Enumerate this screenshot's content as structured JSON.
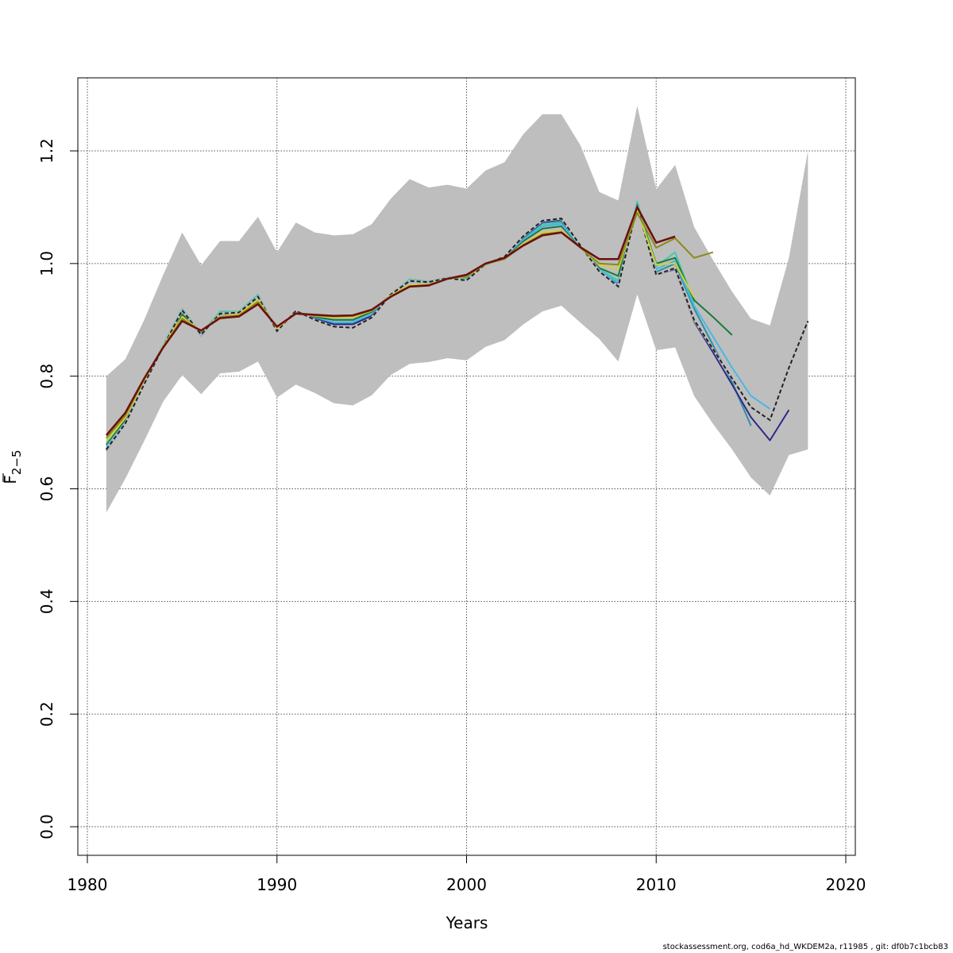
{
  "chart_data": {
    "type": "line",
    "xlabel": "Years",
    "ylabel": {
      "main": "F",
      "subscript": "2−5"
    },
    "xlim": [
      1980,
      2020
    ],
    "ylim": [
      0.0,
      1.2
    ],
    "xticks": [
      1980,
      1990,
      2000,
      2010,
      2020
    ],
    "yticks": [
      0.0,
      0.2,
      0.4,
      0.6,
      0.8,
      1.0,
      1.2
    ],
    "grid": true,
    "band": {
      "x": [
        1981,
        1982,
        1983,
        1984,
        1985,
        1986,
        1987,
        1988,
        1989,
        1990,
        1991,
        1992,
        1993,
        1994,
        1995,
        1996,
        1997,
        1998,
        1999,
        2000,
        2001,
        2002,
        2003,
        2004,
        2005,
        2006,
        2007,
        2008,
        2009,
        2010,
        2011,
        2012,
        2013,
        2014,
        2015,
        2016,
        2017,
        2018
      ],
      "upper": [
        0.8,
        0.83,
        0.9,
        0.98,
        1.055,
        0.997,
        1.04,
        1.04,
        1.083,
        1.02,
        1.073,
        1.055,
        1.05,
        1.052,
        1.07,
        1.115,
        1.15,
        1.135,
        1.14,
        1.133,
        1.165,
        1.18,
        1.23,
        1.265,
        1.265,
        1.21,
        1.127,
        1.112,
        1.28,
        1.132,
        1.175,
        1.065,
        1.006,
        0.95,
        0.902,
        0.89,
        1.01,
        1.2
      ],
      "lower": [
        0.558,
        0.618,
        0.685,
        0.755,
        0.802,
        0.768,
        0.805,
        0.808,
        0.826,
        0.762,
        0.785,
        0.77,
        0.752,
        0.748,
        0.766,
        0.802,
        0.822,
        0.825,
        0.832,
        0.828,
        0.852,
        0.864,
        0.892,
        0.915,
        0.925,
        0.895,
        0.866,
        0.826,
        0.945,
        0.846,
        0.851,
        0.765,
        0.715,
        0.67,
        0.62,
        0.588,
        0.66,
        0.67
      ],
      "color": "#bebebe"
    },
    "series": [
      {
        "color": "#4dc7a8",
        "width": 2,
        "x": [
          1981,
          1982,
          1983,
          1984,
          1985,
          1986,
          1987,
          1988,
          1989,
          1990,
          1991,
          1992,
          1993,
          1994,
          1995,
          1996,
          1997,
          1998,
          1999,
          2000,
          2001,
          2002,
          2003,
          2004,
          2005,
          2006,
          2007,
          2008,
          2009,
          2010,
          2011,
          2012
        ],
        "values": [
          0.68,
          0.72,
          0.79,
          0.855,
          0.92,
          0.875,
          0.915,
          0.915,
          0.945,
          0.88,
          0.915,
          0.905,
          0.9,
          0.9,
          0.915,
          0.945,
          0.972,
          0.968,
          0.975,
          0.975,
          0.998,
          1.012,
          1.045,
          1.068,
          1.072,
          1.03,
          0.99,
          0.97,
          1.11,
          0.995,
          1.02,
          0.93
        ]
      },
      {
        "color": "#1a7a3a",
        "width": 2,
        "x": [
          1981,
          1982,
          1983,
          1984,
          1985,
          1986,
          1987,
          1988,
          1989,
          1990,
          1991,
          1992,
          1993,
          1994,
          1995,
          1996,
          1997,
          1998,
          1999,
          2000,
          2001,
          2002,
          2003,
          2004,
          2005,
          2006,
          2007,
          2008,
          2009,
          2010,
          2011,
          2012,
          2013,
          2014
        ],
        "values": [
          0.678,
          0.722,
          0.792,
          0.852,
          0.91,
          0.878,
          0.91,
          0.912,
          0.94,
          0.882,
          0.913,
          0.905,
          0.9,
          0.9,
          0.914,
          0.944,
          0.968,
          0.966,
          0.974,
          0.976,
          0.998,
          1.011,
          1.04,
          1.062,
          1.066,
          1.03,
          0.992,
          0.978,
          1.1,
          1.0,
          1.01,
          0.935,
          0.905,
          0.873
        ]
      },
      {
        "color": "#2f8fa8",
        "width": 2,
        "x": [
          1981,
          1982,
          1983,
          1984,
          1985,
          1986,
          1987,
          1988,
          1989,
          1990,
          1991,
          1992,
          1993,
          1994,
          1995,
          1996,
          1997,
          1998,
          1999,
          2000,
          2001,
          2002,
          2003,
          2004,
          2005,
          2006,
          2007,
          2008,
          2009,
          2010,
          2011,
          2012,
          2013,
          2014,
          2015
        ],
        "values": [
          0.668,
          0.715,
          0.786,
          0.852,
          0.918,
          0.872,
          0.912,
          0.913,
          0.942,
          0.88,
          0.916,
          0.902,
          0.893,
          0.893,
          0.908,
          0.945,
          0.97,
          0.968,
          0.975,
          0.971,
          0.999,
          1.012,
          1.046,
          1.072,
          1.075,
          1.032,
          0.988,
          0.963,
          1.105,
          0.985,
          1.0,
          0.92,
          0.855,
          0.79,
          0.712
        ]
      },
      {
        "color": "#48b8e0",
        "width": 2,
        "x": [
          1981,
          1982,
          1983,
          1984,
          1985,
          1986,
          1987,
          1988,
          1989,
          1990,
          1991,
          1992,
          1993,
          1994,
          1995,
          1996,
          1997,
          1998,
          1999,
          2000,
          2001,
          2002,
          2003,
          2004,
          2005,
          2006,
          2007,
          2008,
          2009,
          2010,
          2011,
          2012,
          2013,
          2014,
          2015,
          2016
        ],
        "values": [
          0.675,
          0.718,
          0.788,
          0.853,
          0.915,
          0.876,
          0.912,
          0.914,
          0.942,
          0.881,
          0.914,
          0.903,
          0.896,
          0.896,
          0.91,
          0.945,
          0.968,
          0.966,
          0.974,
          0.972,
          0.998,
          1.012,
          1.043,
          1.066,
          1.07,
          1.031,
          0.989,
          0.966,
          1.1,
          0.99,
          1.005,
          0.925,
          0.87,
          0.815,
          0.765,
          0.742
        ]
      },
      {
        "color": "#2e2a8c",
        "width": 2,
        "x": [
          1981,
          1982,
          1983,
          1984,
          1985,
          1986,
          1987,
          1988,
          1989,
          1990,
          1991,
          1992,
          1993,
          1994,
          1995,
          1996,
          1997,
          1998,
          1999,
          2000,
          2001,
          2002,
          2003,
          2004,
          2005,
          2006,
          2007,
          2008,
          2009,
          2010,
          2011,
          2012,
          2013,
          2014,
          2015,
          2016,
          2017
        ],
        "values": [
          0.67,
          0.716,
          0.786,
          0.852,
          0.917,
          0.874,
          0.911,
          0.913,
          0.941,
          0.88,
          0.916,
          0.902,
          0.892,
          0.892,
          0.907,
          0.945,
          0.969,
          0.967,
          0.974,
          0.97,
          0.999,
          1.012,
          1.047,
          1.074,
          1.078,
          1.032,
          0.986,
          0.96,
          1.102,
          0.98,
          0.99,
          0.897,
          0.842,
          0.785,
          0.727,
          0.686,
          0.74
        ]
      },
      {
        "color": "#222222",
        "width": 2,
        "dashed": true,
        "x": [
          1981,
          1982,
          1983,
          1984,
          1985,
          1986,
          1987,
          1988,
          1989,
          1990,
          1991,
          1992,
          1993,
          1994,
          1995,
          1996,
          1997,
          1998,
          1999,
          2000,
          2001,
          2002,
          2003,
          2004,
          2005,
          2006,
          2007,
          2008,
          2009,
          2010,
          2011,
          2012,
          2013,
          2014,
          2015,
          2016,
          2017,
          2018
        ],
        "values": [
          0.67,
          0.716,
          0.786,
          0.852,
          0.917,
          0.874,
          0.911,
          0.913,
          0.941,
          0.88,
          0.916,
          0.9,
          0.888,
          0.886,
          0.904,
          0.945,
          0.969,
          0.967,
          0.974,
          0.97,
          0.999,
          1.012,
          1.049,
          1.076,
          1.08,
          1.032,
          0.986,
          0.959,
          1.102,
          0.98,
          0.992,
          0.9,
          0.848,
          0.796,
          0.745,
          0.722,
          0.815,
          0.898
        ]
      },
      {
        "color": "#d6cf3a",
        "width": 2,
        "x": [
          1981,
          1982,
          1983,
          1984,
          1985,
          1986,
          1987,
          1988,
          1989,
          1990,
          1991,
          1992,
          1993,
          1994,
          1995,
          1996,
          1997,
          1998,
          1999,
          2000,
          2001,
          2002,
          2003,
          2004,
          2005,
          2006,
          2007,
          2008,
          2009,
          2010,
          2011,
          2012
        ],
        "values": [
          0.684,
          0.726,
          0.793,
          0.853,
          0.905,
          0.88,
          0.906,
          0.91,
          0.935,
          0.885,
          0.912,
          0.907,
          0.904,
          0.905,
          0.916,
          0.943,
          0.962,
          0.963,
          0.973,
          0.977,
          0.999,
          1.008,
          1.035,
          1.055,
          1.058,
          1.028,
          0.998,
          0.99,
          1.095,
          0.998,
          1.0,
          0.94
        ]
      },
      {
        "color": "#8a8a1a",
        "width": 2,
        "x": [
          1981,
          1982,
          1983,
          1984,
          1985,
          1986,
          1987,
          1988,
          1989,
          1990,
          1991,
          1992,
          1993,
          1994,
          1995,
          1996,
          1997,
          1998,
          1999,
          2000,
          2001,
          2002,
          2003,
          2004,
          2005,
          2006,
          2007,
          2008,
          2009,
          2010,
          2011,
          2012,
          2013
        ],
        "values": [
          0.69,
          0.73,
          0.795,
          0.852,
          0.902,
          0.88,
          0.905,
          0.908,
          0.932,
          0.887,
          0.912,
          0.908,
          0.906,
          0.907,
          0.917,
          0.942,
          0.96,
          0.962,
          0.973,
          0.978,
          0.999,
          1.008,
          1.033,
          1.052,
          1.056,
          1.028,
          1.0,
          0.998,
          1.09,
          1.028,
          1.045,
          1.01,
          1.02
        ]
      },
      {
        "color": "#6b0f0f",
        "width": 2.5,
        "x": [
          1981,
          1982,
          1983,
          1984,
          1985,
          1986,
          1987,
          1988,
          1989,
          1990,
          1991,
          1992,
          1993,
          1994,
          1995,
          1996,
          1997,
          1998,
          1999,
          2000,
          2001,
          2002,
          2003,
          2004,
          2005,
          2006,
          2007,
          2008,
          2009,
          2010,
          2011
        ],
        "values": [
          0.695,
          0.735,
          0.796,
          0.851,
          0.898,
          0.881,
          0.903,
          0.906,
          0.928,
          0.888,
          0.911,
          0.909,
          0.907,
          0.908,
          0.918,
          0.941,
          0.959,
          0.961,
          0.973,
          0.98,
          1.0,
          1.01,
          1.032,
          1.05,
          1.055,
          1.029,
          1.008,
          1.008,
          1.1,
          1.037,
          1.048
        ]
      }
    ]
  },
  "footer": "stockassessment.org, cod6a_hd_WKDEM2a, r11985 , git: df0b7c1bcb83"
}
